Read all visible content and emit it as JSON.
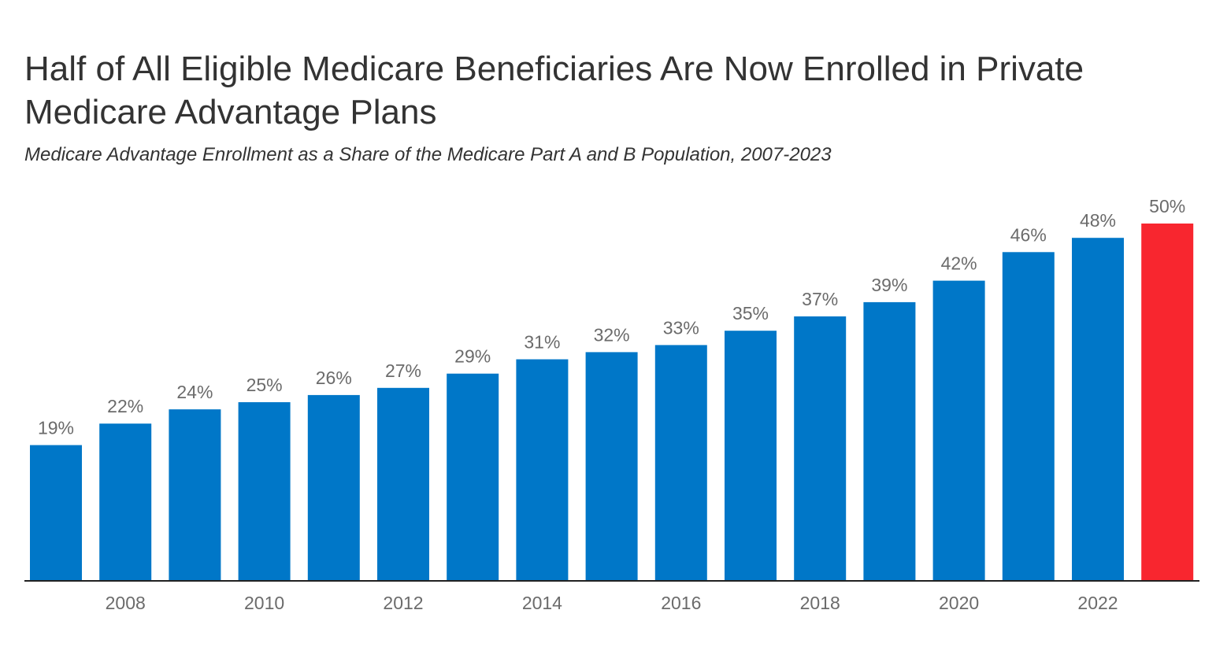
{
  "title": "Half of All Eligible Medicare Beneficiaries Are Now Enrolled in Private Medicare Advantage Plans",
  "subtitle": "Medicare Advantage Enrollment as a Share of the Medicare Part A and B Population, 2007-2023",
  "colors": {
    "bar": "#0077c8",
    "highlight": "#f8262f",
    "axis": "#222222",
    "label": "#6b6b6b",
    "text": "#333333"
  },
  "chart_data": {
    "type": "bar",
    "categories": [
      "2007",
      "2008",
      "2009",
      "2010",
      "2011",
      "2012",
      "2013",
      "2014",
      "2015",
      "2016",
      "2017",
      "2018",
      "2019",
      "2020",
      "2021",
      "2022",
      "2023"
    ],
    "values": [
      19,
      22,
      24,
      25,
      26,
      27,
      29,
      31,
      32,
      33,
      35,
      37,
      39,
      42,
      46,
      48,
      50
    ],
    "data_labels": [
      "19%",
      "22%",
      "24%",
      "25%",
      "26%",
      "27%",
      "29%",
      "31%",
      "32%",
      "33%",
      "35%",
      "37%",
      "39%",
      "42%",
      "46%",
      "48%",
      "50%"
    ],
    "x_tick_labels": [
      "2008",
      "2010",
      "2012",
      "2014",
      "2016",
      "2018",
      "2020",
      "2022"
    ],
    "highlight_category": "2023",
    "ylim": [
      0,
      50
    ],
    "grid": false,
    "xlabel": "",
    "ylabel": ""
  }
}
